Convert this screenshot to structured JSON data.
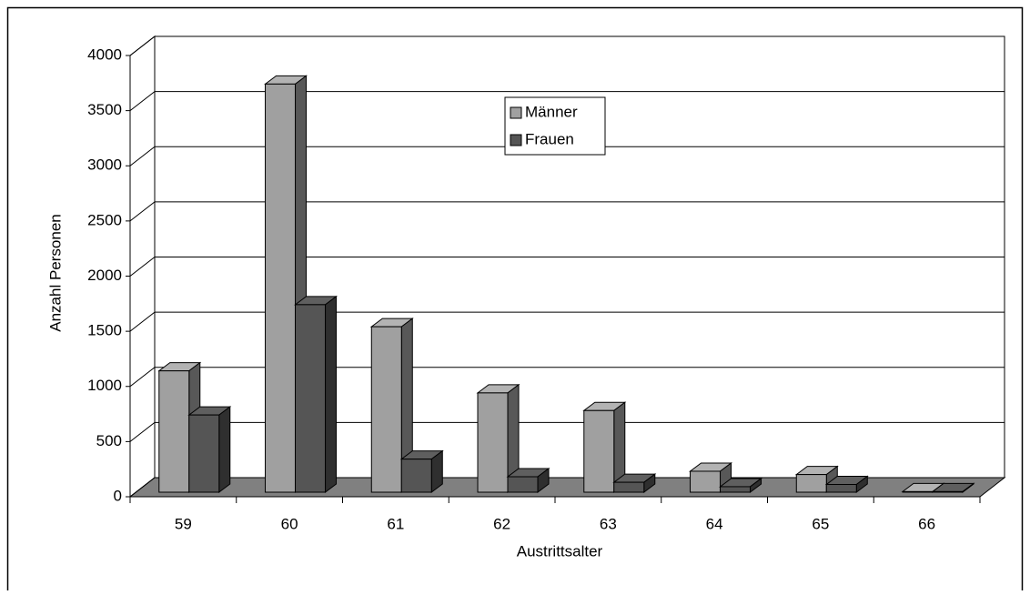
{
  "chart_data": {
    "type": "bar3d",
    "x_label": "Austrittsalter",
    "y_label": "Anzahl Personen",
    "categories": [
      "59",
      "60",
      "61",
      "62",
      "63",
      "64",
      "65",
      "66"
    ],
    "series": [
      {
        "name": "Männer",
        "color": "#a0a0a0",
        "values": [
          1100,
          3700,
          1500,
          900,
          740,
          190,
          160,
          5
        ]
      },
      {
        "name": "Frauen",
        "color": "#555555",
        "values": [
          700,
          1700,
          300,
          140,
          90,
          50,
          70,
          5
        ]
      }
    ],
    "ylim": [
      0,
      4000
    ],
    "yticks": [
      0,
      500,
      1000,
      1500,
      2000,
      2500,
      3000,
      3500,
      4000
    ],
    "grid": true,
    "legend": "top-center"
  }
}
